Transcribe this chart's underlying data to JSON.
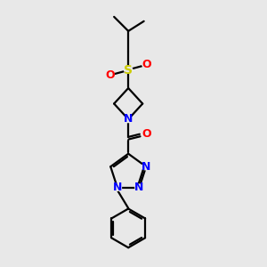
{
  "bg_color": "#e8e8e8",
  "bond_color": "#000000",
  "n_color": "#0000ff",
  "o_color": "#ff0000",
  "s_color": "#cccc00",
  "line_width": 1.6,
  "font_size": 9.0,
  "xlim": [
    3.0,
    7.5
  ],
  "ylim": [
    0.3,
    10.5
  ]
}
